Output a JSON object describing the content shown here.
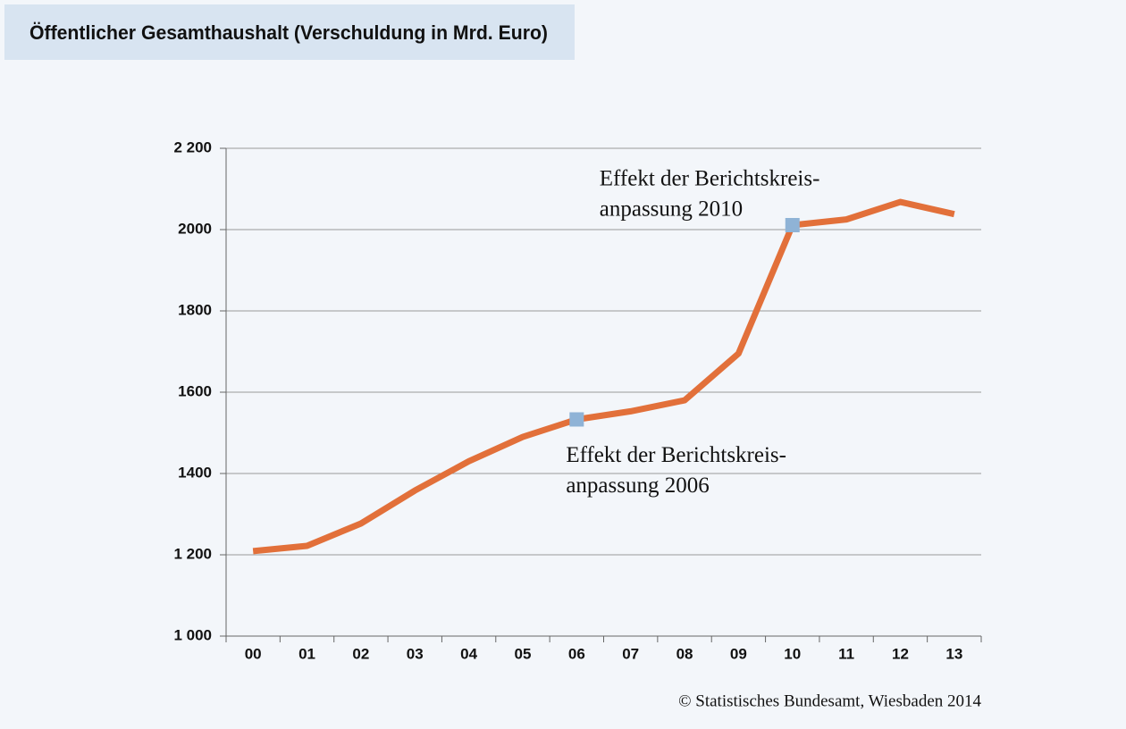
{
  "chart_data": {
    "type": "line",
    "title": "Öffentlicher Gesamthaushalt (Verschuldung in Mrd. Euro)",
    "categories": [
      "00",
      "01",
      "02",
      "03",
      "04",
      "05",
      "06",
      "07",
      "08",
      "09",
      "10",
      "11",
      "12",
      "13"
    ],
    "values": [
      1209,
      1222,
      1277,
      1358,
      1430,
      1490,
      1533,
      1553,
      1580,
      1695,
      2011,
      2025,
      2068,
      2038
    ],
    "color": "#e2703a",
    "marker_color": "#8fb3d6",
    "ylim": [
      1000,
      2200
    ],
    "yticks": [
      {
        "value": 1000,
        "label": "1 000"
      },
      {
        "value": 1200,
        "label": "1 200"
      },
      1400,
      1600,
      1800,
      2000,
      {
        "value": 2200,
        "label": "2 200"
      }
    ],
    "grid": true,
    "annotations": [
      {
        "index": 6,
        "lines": [
          "Effekt der Berichtskreis-",
          "anpassung 2006"
        ]
      },
      {
        "index": 10,
        "lines": [
          "Effekt der Berichtskreis-",
          "anpassung 2010"
        ]
      }
    ],
    "source": "© Statistisches Bundesamt, Wiesbaden 2014"
  }
}
